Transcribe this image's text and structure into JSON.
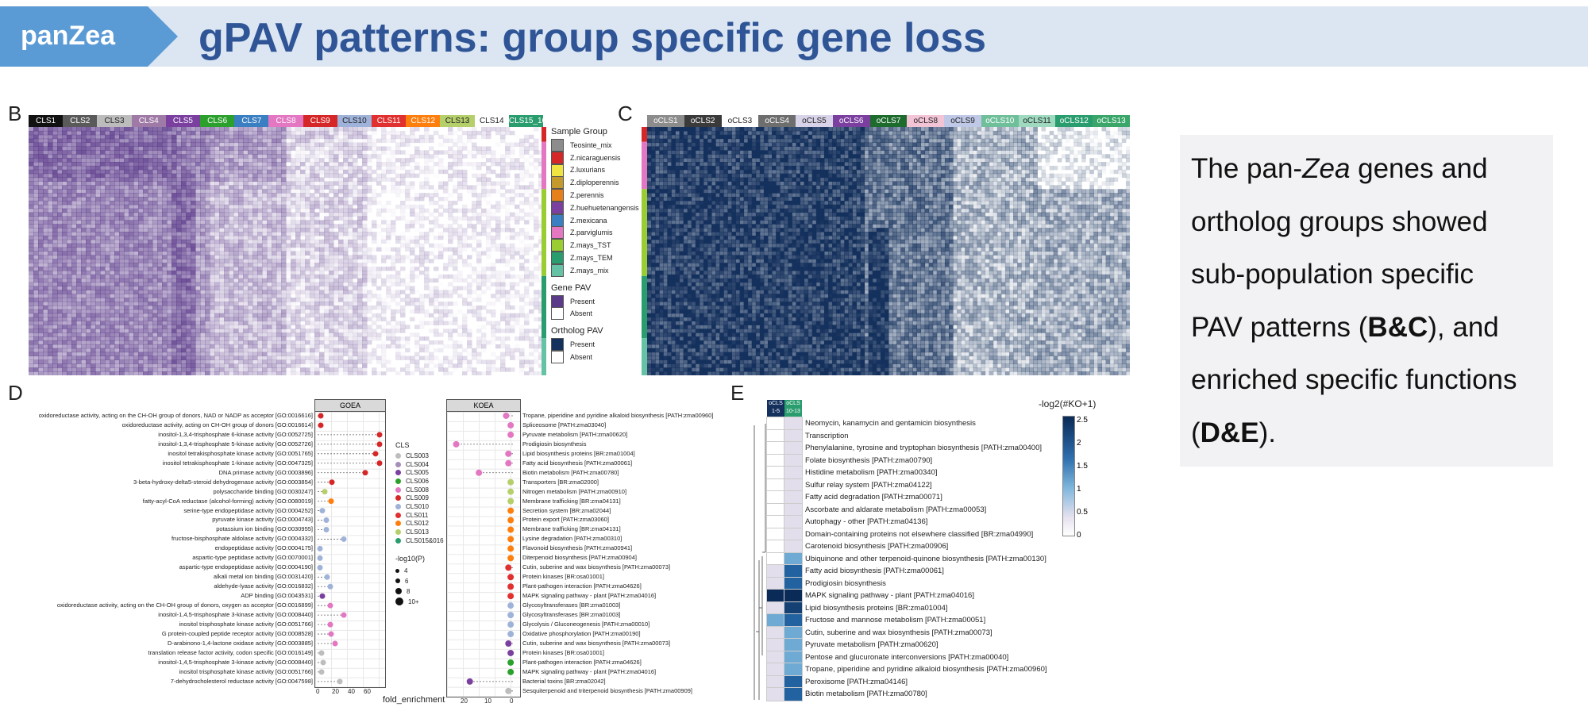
{
  "header": {
    "tag": "panZea",
    "title": "gPAV patterns: group specific gene loss"
  },
  "panels": {
    "b": "B",
    "c": "C",
    "d": "D",
    "e": "E"
  },
  "panel_b": {
    "clusters": [
      {
        "label": "CLS1",
        "color": "#111111"
      },
      {
        "label": "CLS2",
        "color": "#5a5a5a"
      },
      {
        "label": "CLS3",
        "color": "#bcbcbc"
      },
      {
        "label": "CLS4",
        "color": "#a07aa6"
      },
      {
        "label": "CLS5",
        "color": "#7b3fa0"
      },
      {
        "label": "CLS6",
        "color": "#2ca02c"
      },
      {
        "label": "CLS7",
        "color": "#3a7fc1"
      },
      {
        "label": "CLS8",
        "color": "#e377c2"
      },
      {
        "label": "CLS9",
        "color": "#d62728"
      },
      {
        "label": "CLS10",
        "color": "#9fb2d9"
      },
      {
        "label": "CLS11",
        "color": "#e03030"
      },
      {
        "label": "CLS12",
        "color": "#ff7f0e"
      },
      {
        "label": "CLS13",
        "color": "#b5cf6b"
      },
      {
        "label": "CLS14",
        "color": "#ffffff"
      },
      {
        "label": "CLS15_16",
        "color": "#2a9d6f"
      }
    ]
  },
  "panel_c": {
    "clusters": [
      {
        "label": "oCLS1",
        "color": "#8c8c8c"
      },
      {
        "label": "oCLS2",
        "color": "#3a3a3a"
      },
      {
        "label": "oCLS3",
        "color": "#ffffff"
      },
      {
        "label": "oCLS4",
        "color": "#6e6e6e"
      },
      {
        "label": "oCLS5",
        "color": "#d8d3e8"
      },
      {
        "label": "oCLS6",
        "color": "#7b3fa0"
      },
      {
        "label": "oCLS7",
        "color": "#1e6b2e"
      },
      {
        "label": "oCLS8",
        "color": "#f2c4d6"
      },
      {
        "label": "oCLS9",
        "color": "#bfc8e6"
      },
      {
        "label": "oCLS10",
        "color": "#6fbf9a"
      },
      {
        "label": "oCLS11",
        "color": "#9ed9c0"
      },
      {
        "label": "oCLS12",
        "color": "#2a9d6f"
      },
      {
        "label": "oCLS13",
        "color": "#3aa66a"
      }
    ]
  },
  "legend": {
    "sample_title": "Sample Group",
    "samples": [
      {
        "label": "Teosinte_mix",
        "color": "#8c8c8c"
      },
      {
        "label": "Z.nicaraguensis",
        "color": "#d62728"
      },
      {
        "label": "Z.luxurians",
        "color": "#f0e442"
      },
      {
        "label": "Z.diploperennis",
        "color": "#c49a2c"
      },
      {
        "label": "Z.perennis",
        "color": "#e6801a"
      },
      {
        "label": "Z.huehuetenangensis",
        "color": "#7b3fa0"
      },
      {
        "label": "Z.mexicana",
        "color": "#3a7fc1"
      },
      {
        "label": "Z.parviglumis",
        "color": "#e377c2"
      },
      {
        "label": "Z.mays_TST",
        "color": "#9acd32"
      },
      {
        "label": "Z.mays_TEM",
        "color": "#2a9d6f"
      },
      {
        "label": "Z.mays_mix",
        "color": "#66c2a5"
      }
    ],
    "gene_title": "Gene PAV",
    "gene": [
      {
        "label": "Present",
        "color": "#5b3a8a"
      },
      {
        "label": "Absent",
        "color": "#ffffff"
      }
    ],
    "ortho_title": "Ortholog PAV",
    "ortho": [
      {
        "label": "Present",
        "color": "#14305c"
      },
      {
        "label": "Absent",
        "color": "#ffffff"
      }
    ]
  },
  "description": {
    "line1_pre": "The pan-",
    "line1_em": "Zea",
    "line1_post": " genes and",
    "line2": "ortholog groups showed",
    "line3": "sub-population specific",
    "line4_pre": "PAV patterns (",
    "line4_b": "B&C",
    "line4_post": "), and",
    "line5": "enriched specific functions",
    "line6_pre": "(",
    "line6_b": "D&E",
    "line6_post": ")."
  },
  "panel_d": {
    "go_facet": "GOEA",
    "kegg_facet": "KOEA",
    "xlabel": "fold_enrichment",
    "go_ticks": [
      "0",
      "20",
      "40",
      "60"
    ],
    "kegg_ticks": [
      "20",
      "10",
      "0"
    ],
    "go_terms": [
      "oxidoreductase activity, acting on the CH-OH group of donors, NAD or NADP as acceptor [GO:0016616]",
      "oxidoreductase activity, acting on CH-OH group of donors [GO:0016614]",
      "inositol-1,3,4-trisphosphate 6-kinase activity [GO:0052725]",
      "inositol-1,3,4-trisphosphate 5-kinase activity [GO:0052726]",
      "inositol tetrakisphosphate kinase activity [GO:0051765]",
      "inositol tetrakisphosphate 1-kinase activity [GO:0047325]",
      "DNA primase activity [GO:0003896]",
      "3-beta-hydroxy-delta5-steroid dehydrogenase activity [GO:0003854]",
      "polysaccharide binding [GO:0030247]",
      "fatty-acyl-CoA reductase (alcohol-forming) activity [GO:0080019]",
      "serine-type endopeptidase activity [GO:0004252]",
      "pyruvate kinase activity [GO:0004743]",
      "potassium ion binding [GO:0030955]",
      "fructose-bisphosphate aldolase activity [GO:0004332]",
      "endopeptidase activity [GO:0004175]",
      "aspartic-type peptidase activity [GO:0070001]",
      "aspartic-type endopeptidase activity [GO:0004190]",
      "alkali metal ion binding [GO:0031420]",
      "aldehyde-lyase activity [GO:0016832]",
      "ADP binding [GO:0043531]",
      "oxidoreductase activity, acting on the CH-OH group of donors, oxygen as acceptor [GO:0016899]",
      "inositol-1,4,5-trisphosphate 3-kinase activity [GO:0008440]",
      "inositol trisphosphate kinase activity [GO:0051766]",
      "G protein-coupled peptide receptor activity [GO:0008528]",
      "D-arabinono-1,4-lactone oxidase activity [GO:0003885]",
      "translation release factor activity, codon specific [GO:0016149]",
      "inositol-1,4,5-trisphosphate 3-kinase activity [GO:0008440]",
      "inositol trisphosphate kinase activity [GO:0051766]",
      "7-dehydrocholesterol reductase activity [GO:0047598]"
    ],
    "kegg_terms": [
      "Tropane, piperidine and pyridine alkaloid biosynthesis [PATH:zma00960]",
      "Spliceosome [PATH:zma03040]",
      "Pyruvate metabolism [PATH:zma00620]",
      "Prodigiosin biosynthesis",
      "Lipid biosynthesis proteins [BR:zma01004]",
      "Fatty acid biosynthesis [PATH:zma00061]",
      "Biotin metabolism [PATH:zma00780]",
      "Transporters [BR:zma02000]",
      "Nitrogen metabolism [PATH:zma00910]",
      "Membrane trafficking [BR:zma04131]",
      "Secretion system [BR:zma02044]",
      "Protein export [PATH:zma03060]",
      "Membrane trafficking [BR:zma04131]",
      "Lysine degradation [PATH:zma00310]",
      "Flavonoid biosynthesis [PATH:zma00941]",
      "Diterpenoid biosynthesis [PATH:zma00904]",
      "Cutin, suberine and wax biosynthesis [PATH:zma00073]",
      "Protein kinases [BR:osa01001]",
      "Plant-pathogen interaction [PATH:zma04626]",
      "MAPK signaling pathway - plant [PATH:zma04016]",
      "Glycosyltransferases [BR:zma01003]",
      "Glycosyltransferases [BR:zma01003]",
      "Glycolysis / Gluconeogenesis [PATH:zma00010]",
      "Oxidative phosphorylation [PATH:zma00190]",
      "Cutin, suberine and wax biosynthesis [PATH:zma00073]",
      "Protein kinases [BR:osa01001]",
      "Plant-pathogen interaction [PATH:zma04626]",
      "MAPK signaling pathway - plant [PATH:zma04016]",
      "Bacterial toxins [BR:zma02042]",
      "Sesquiterpenoid and triterpenoid biosynthesis [PATH:zma00909]"
    ],
    "go_points": [
      {
        "fe": 4,
        "cls": 5
      },
      {
        "fe": 4,
        "cls": 5
      },
      {
        "fe": 78,
        "cls": 5
      },
      {
        "fe": 78,
        "cls": 5
      },
      {
        "fe": 73,
        "cls": 5
      },
      {
        "fe": 78,
        "cls": 5
      },
      {
        "fe": 60,
        "cls": 5
      },
      {
        "fe": 18,
        "cls": 5
      },
      {
        "fe": 9,
        "cls": 9
      },
      {
        "fe": 17,
        "cls": 8
      },
      {
        "fe": 6,
        "cls": 6
      },
      {
        "fe": 11,
        "cls": 6
      },
      {
        "fe": 11,
        "cls": 6
      },
      {
        "fe": 33,
        "cls": 6
      },
      {
        "fe": 3,
        "cls": 6
      },
      {
        "fe": 3,
        "cls": 6
      },
      {
        "fe": 3,
        "cls": 6
      },
      {
        "fe": 12,
        "cls": 6
      },
      {
        "fe": 16,
        "cls": 6
      },
      {
        "fe": 6,
        "cls": 2
      },
      {
        "fe": 16,
        "cls": 4
      },
      {
        "fe": 33,
        "cls": 4
      },
      {
        "fe": 16,
        "cls": 4
      },
      {
        "fe": 17,
        "cls": 4
      },
      {
        "fe": 22,
        "cls": 4
      },
      {
        "fe": 5,
        "cls": 0
      },
      {
        "fe": 7,
        "cls": 0
      },
      {
        "fe": 5,
        "cls": 0
      },
      {
        "fe": 28,
        "cls": 0
      }
    ],
    "kegg_points": [
      {
        "fe": 3,
        "cls": 4
      },
      {
        "fe": 1,
        "cls": 4
      },
      {
        "fe": 1,
        "cls": 4
      },
      {
        "fe": 25,
        "cls": 4
      },
      {
        "fe": 2,
        "cls": 4
      },
      {
        "fe": 2,
        "cls": 4
      },
      {
        "fe": 15,
        "cls": 4
      },
      {
        "fe": 1,
        "cls": 9
      },
      {
        "fe": 1,
        "cls": 9
      },
      {
        "fe": 1,
        "cls": 9
      },
      {
        "fe": 1,
        "cls": 8
      },
      {
        "fe": 1,
        "cls": 8
      },
      {
        "fe": 1,
        "cls": 8
      },
      {
        "fe": 1,
        "cls": 8
      },
      {
        "fe": 1,
        "cls": 8
      },
      {
        "fe": 1,
        "cls": 8
      },
      {
        "fe": 2,
        "cls": 7
      },
      {
        "fe": 1,
        "cls": 7
      },
      {
        "fe": 1,
        "cls": 7
      },
      {
        "fe": 1,
        "cls": 7
      },
      {
        "fe": 1,
        "cls": 6
      },
      {
        "fe": 1,
        "cls": 6
      },
      {
        "fe": 1,
        "cls": 6
      },
      {
        "fe": 1,
        "cls": 6
      },
      {
        "fe": 2,
        "cls": 2
      },
      {
        "fe": 1,
        "cls": 2
      },
      {
        "fe": 1,
        "cls": 3
      },
      {
        "fe": 1,
        "cls": 3
      },
      {
        "fe": 19,
        "cls": 2
      },
      {
        "fe": 2,
        "cls": 0
      }
    ],
    "cls_title": "CLS",
    "cls_legend": [
      {
        "label": "CLS003",
        "color": "#bdbdbd"
      },
      {
        "label": "CLS004",
        "color": "#a48fb8"
      },
      {
        "label": "CLS005",
        "color": "#7b3fa0"
      },
      {
        "label": "CLS006",
        "color": "#2ca02c"
      },
      {
        "label": "CLS008",
        "color": "#e377c2"
      },
      {
        "label": "CLS009",
        "color": "#d62728"
      },
      {
        "label": "CLS010",
        "color": "#9fb2d9"
      },
      {
        "label": "CLS011",
        "color": "#e03030"
      },
      {
        "label": "CLS012",
        "color": "#ff7f0e"
      },
      {
        "label": "CLS013",
        "color": "#b5cf6b"
      },
      {
        "label": "CLS015&016",
        "color": "#2a9d6f"
      }
    ],
    "size_title": "-log10(P)",
    "size_legend": [
      "4",
      "6",
      "8",
      "10+"
    ]
  },
  "panel_e": {
    "col_headers": [
      {
        "label": "oCLS 1-5",
        "color": "#14305c"
      },
      {
        "label": "oCLS 10-13",
        "color": "#2a9d6f"
      }
    ],
    "legend_title": "-log2(#KO+1)",
    "legend_ticks": [
      "2.5",
      "2",
      "1.5",
      "1",
      "0.5",
      "0"
    ],
    "pathways": [
      {
        "name": "Neomycin, kanamycin and gentamicin biosynthesis",
        "v1": 0,
        "v2": 0.6
      },
      {
        "name": "Transcription",
        "v1": 0,
        "v2": 0.6
      },
      {
        "name": "Phenylalanine, tyrosine and tryptophan biosynthesis [PATH:zma00400]",
        "v1": 0,
        "v2": 0.6
      },
      {
        "name": "Folate biosynthesis [PATH:zma00790]",
        "v1": 0,
        "v2": 0.6
      },
      {
        "name": "Histidine metabolism [PATH:zma00340]",
        "v1": 0,
        "v2": 0.6
      },
      {
        "name": "Sulfur relay system [PATH:zma04122]",
        "v1": 0,
        "v2": 0.6
      },
      {
        "name": "Fatty acid degradation [PATH:zma00071]",
        "v1": 0,
        "v2": 0.6
      },
      {
        "name": "Ascorbate and aldarate metabolism [PATH:zma00053]",
        "v1": 0,
        "v2": 0.6
      },
      {
        "name": "Autophagy - other [PATH:zma04136]",
        "v1": 0,
        "v2": 0.6
      },
      {
        "name": "Domain-containing proteins not elsewhere classified [BR:zma04990]",
        "v1": 0,
        "v2": 0.6
      },
      {
        "name": "Carotenoid biosynthesis [PATH:zma00906]",
        "v1": 0,
        "v2": 0.6
      },
      {
        "name": "Ubiquinone and other terpenoid-quinone biosynthesis [PATH:zma00130]",
        "v1": 0,
        "v2": 1.5
      },
      {
        "name": "Fatty acid biosynthesis [PATH:zma00061]",
        "v1": 0.6,
        "v2": 2.1
      },
      {
        "name": "Prodigiosin biosynthesis",
        "v1": 0.6,
        "v2": 2.1
      },
      {
        "name": "MAPK signaling pathway - plant [PATH:zma04016]",
        "v1": 2.6,
        "v2": 2.6
      },
      {
        "name": "Lipid biosynthesis proteins [BR:zma01004]",
        "v1": 0.6,
        "v2": 2.4
      },
      {
        "name": "Fructose and mannose metabolism [PATH:zma00051]",
        "v1": 1.5,
        "v2": 2.1
      },
      {
        "name": "Cutin, suberine and wax biosynthesis [PATH:zma00073]",
        "v1": 0.6,
        "v2": 1.5
      },
      {
        "name": "Pyruvate metabolism [PATH:zma00620]",
        "v1": 0.6,
        "v2": 1.5
      },
      {
        "name": "Pentose and glucuronate interconversions [PATH:zma00040]",
        "v1": 0.6,
        "v2": 1.5
      },
      {
        "name": "Tropane, piperidine and pyridine alkaloid biosynthesis [PATH:zma00960]",
        "v1": 0.6,
        "v2": 1.5
      },
      {
        "name": "Peroxisome [PATH:zma04146]",
        "v1": 0.6,
        "v2": 2.1
      },
      {
        "name": "Biotin metabolism [PATH:zma00780]",
        "v1": 0.6,
        "v2": 2.1
      }
    ]
  }
}
